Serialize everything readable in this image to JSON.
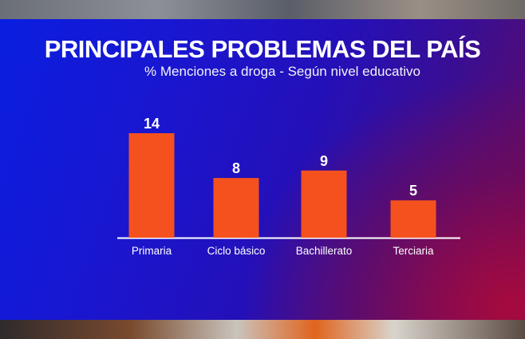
{
  "chart_data": {
    "type": "bar",
    "title": "PRINCIPALES PROBLEMAS DEL PAÍS",
    "subtitle": "% Menciones a droga - Según nivel educativo",
    "categories": [
      "Primaria",
      "Ciclo básico",
      "Bachillerato",
      "Terciaria"
    ],
    "values": [
      14,
      8,
      9,
      5
    ],
    "value_labels": [
      "14",
      "8",
      "9",
      "5"
    ],
    "ylim": [
      0,
      14
    ],
    "grid": false,
    "bar_color": "#f4511e",
    "axis_color": "#ffffff"
  }
}
